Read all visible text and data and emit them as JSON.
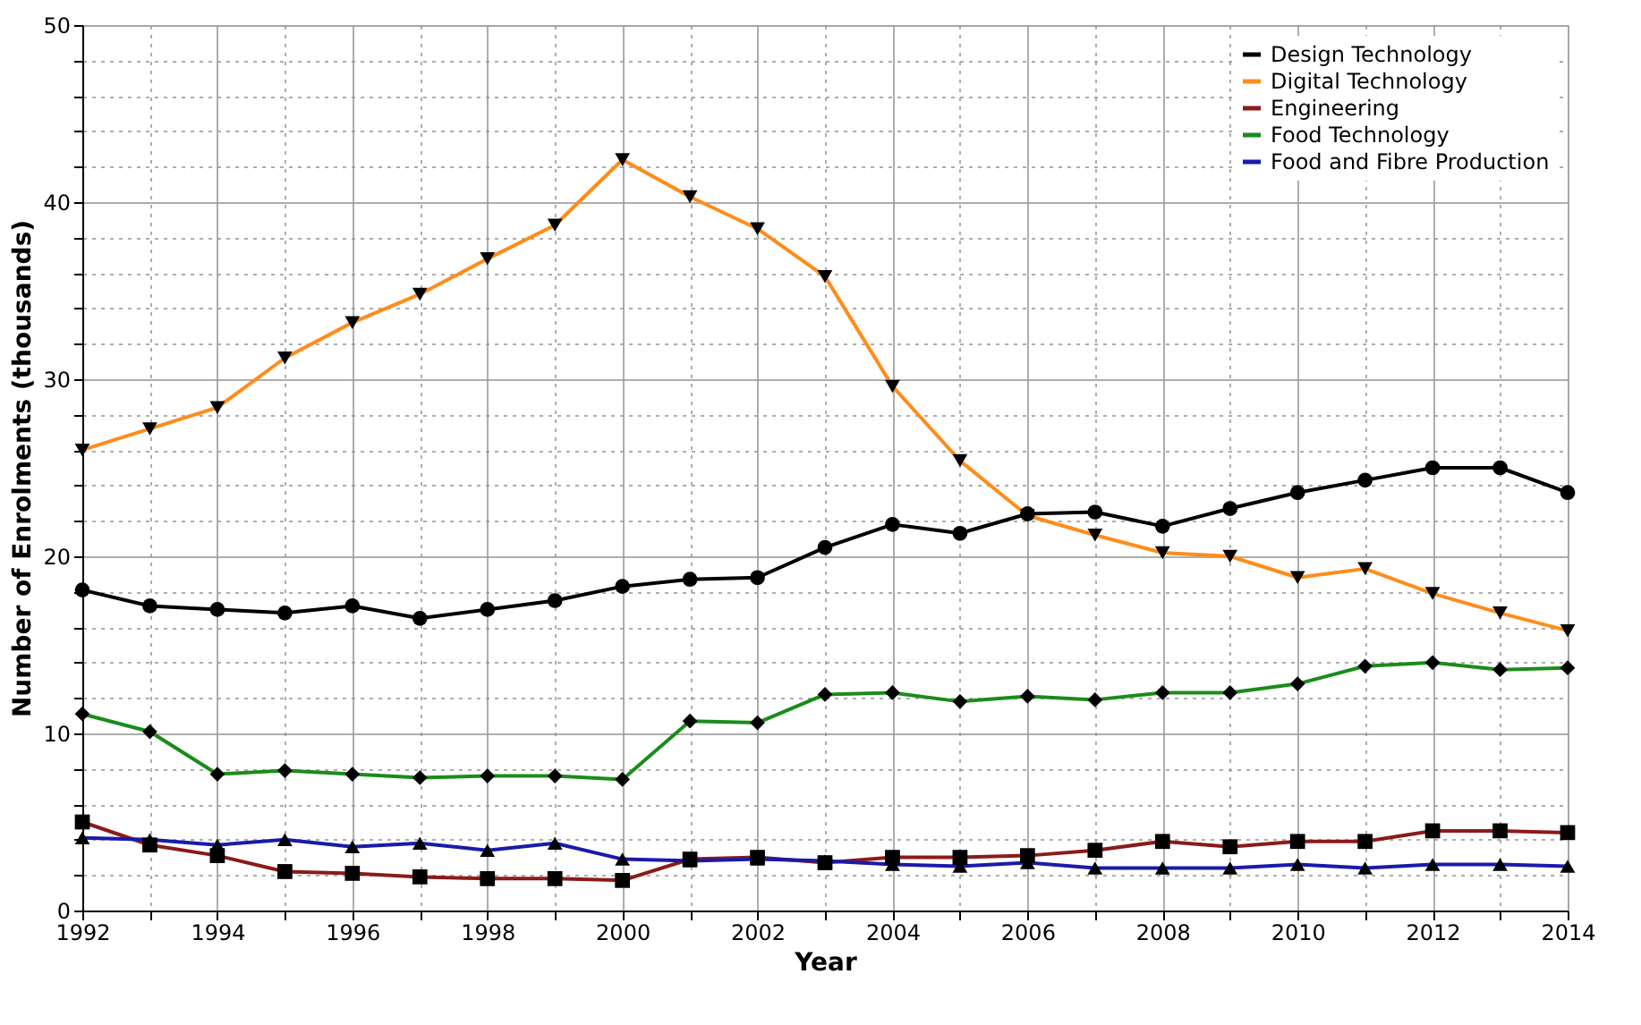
{
  "chart_data": {
    "type": "line",
    "xlabel": "Year",
    "ylabel": "Number of Enrolments (thousands)",
    "x": [
      1992,
      1993,
      1994,
      1995,
      1996,
      1997,
      1998,
      1999,
      2000,
      2001,
      2002,
      2003,
      2004,
      2005,
      2006,
      2007,
      2008,
      2009,
      2010,
      2011,
      2012,
      2013,
      2014
    ],
    "series": [
      {
        "name": "Design Technology",
        "color": "#000000",
        "marker": "circle",
        "values": [
          18.1,
          17.2,
          17.0,
          16.8,
          17.2,
          16.5,
          17.0,
          17.5,
          18.3,
          18.7,
          18.8,
          20.5,
          21.8,
          21.3,
          22.4,
          22.5,
          21.7,
          22.7,
          23.6,
          24.3,
          25.0,
          25.0,
          23.6
        ]
      },
      {
        "name": "Digital Technology",
        "color": "#ff8c1a",
        "marker": "triangle-down",
        "values": [
          26.0,
          27.2,
          28.4,
          31.2,
          33.2,
          34.8,
          36.8,
          38.7,
          42.4,
          40.3,
          38.5,
          35.8,
          29.6,
          25.4,
          22.3,
          21.2,
          20.2,
          20.0,
          18.8,
          19.3,
          17.9,
          16.8,
          15.8
        ]
      },
      {
        "name": "Engineering",
        "color": "#8b1a1a",
        "marker": "square",
        "values": [
          5.0,
          3.7,
          3.1,
          2.2,
          2.1,
          1.9,
          1.8,
          1.8,
          1.7,
          2.9,
          3.0,
          2.7,
          3.0,
          3.0,
          3.1,
          3.4,
          3.9,
          3.6,
          3.9,
          3.9,
          4.5,
          4.5,
          4.4
        ]
      },
      {
        "name": "Food Technology",
        "color": "#1a8c1a",
        "marker": "diamond",
        "values": [
          11.1,
          10.1,
          7.7,
          7.9,
          7.7,
          7.5,
          7.6,
          7.6,
          7.4,
          10.7,
          10.6,
          12.2,
          12.3,
          11.8,
          12.1,
          11.9,
          12.3,
          12.3,
          12.8,
          13.8,
          14.0,
          13.6,
          13.7
        ]
      },
      {
        "name": "Food and Fibre Production",
        "color": "#1a1aaa",
        "marker": "triangle-up",
        "values": [
          4.1,
          4.0,
          3.7,
          4.0,
          3.6,
          3.8,
          3.4,
          3.8,
          2.9,
          2.8,
          2.9,
          2.8,
          2.6,
          2.5,
          2.7,
          2.4,
          2.4,
          2.4,
          2.6,
          2.4,
          2.6,
          2.6,
          2.5
        ]
      }
    ],
    "xlim": [
      1992,
      2014
    ],
    "xticks": [
      1992,
      {
        "value": 1993,
        "label": null
      },
      1994,
      {
        "value": 1995,
        "label": null
      },
      1996,
      {
        "value": 1997,
        "label": null
      },
      1998,
      {
        "value": 1999,
        "label": null
      },
      2000,
      {
        "value": 2001,
        "label": null
      },
      2002,
      {
        "value": 2003,
        "label": null
      },
      2004,
      {
        "value": 2005,
        "label": null
      },
      2006,
      {
        "value": 2007,
        "label": null
      },
      2008,
      {
        "value": 2009,
        "label": null
      },
      2010,
      {
        "value": 2011,
        "label": null
      },
      2012,
      {
        "value": 2013,
        "label": null
      },
      2014
    ],
    "ylim": [
      0,
      50
    ],
    "yticks": [
      0,
      {
        "value": 2,
        "label": null
      },
      {
        "value": 4,
        "label": null
      },
      {
        "value": 6,
        "label": null
      },
      {
        "value": 8,
        "label": null
      },
      10,
      {
        "value": 12,
        "label": null
      },
      {
        "value": 14,
        "label": null
      },
      {
        "value": 16,
        "label": null
      },
      {
        "value": 18,
        "label": null
      },
      20,
      {
        "value": 22,
        "label": null
      },
      {
        "value": 24,
        "label": null
      },
      {
        "value": 26,
        "label": null
      },
      {
        "value": 28,
        "label": null
      },
      30,
      {
        "value": 32,
        "label": null
      },
      {
        "value": 34,
        "label": null
      },
      {
        "value": 36,
        "label": null
      },
      {
        "value": 38,
        "label": null
      },
      40,
      {
        "value": 42,
        "label": null
      },
      {
        "value": 44,
        "label": null
      },
      {
        "value": 46,
        "label": null
      },
      {
        "value": 48,
        "label": null
      },
      50
    ],
    "grid": true,
    "legend": "top right",
    "line_style": "solid"
  }
}
